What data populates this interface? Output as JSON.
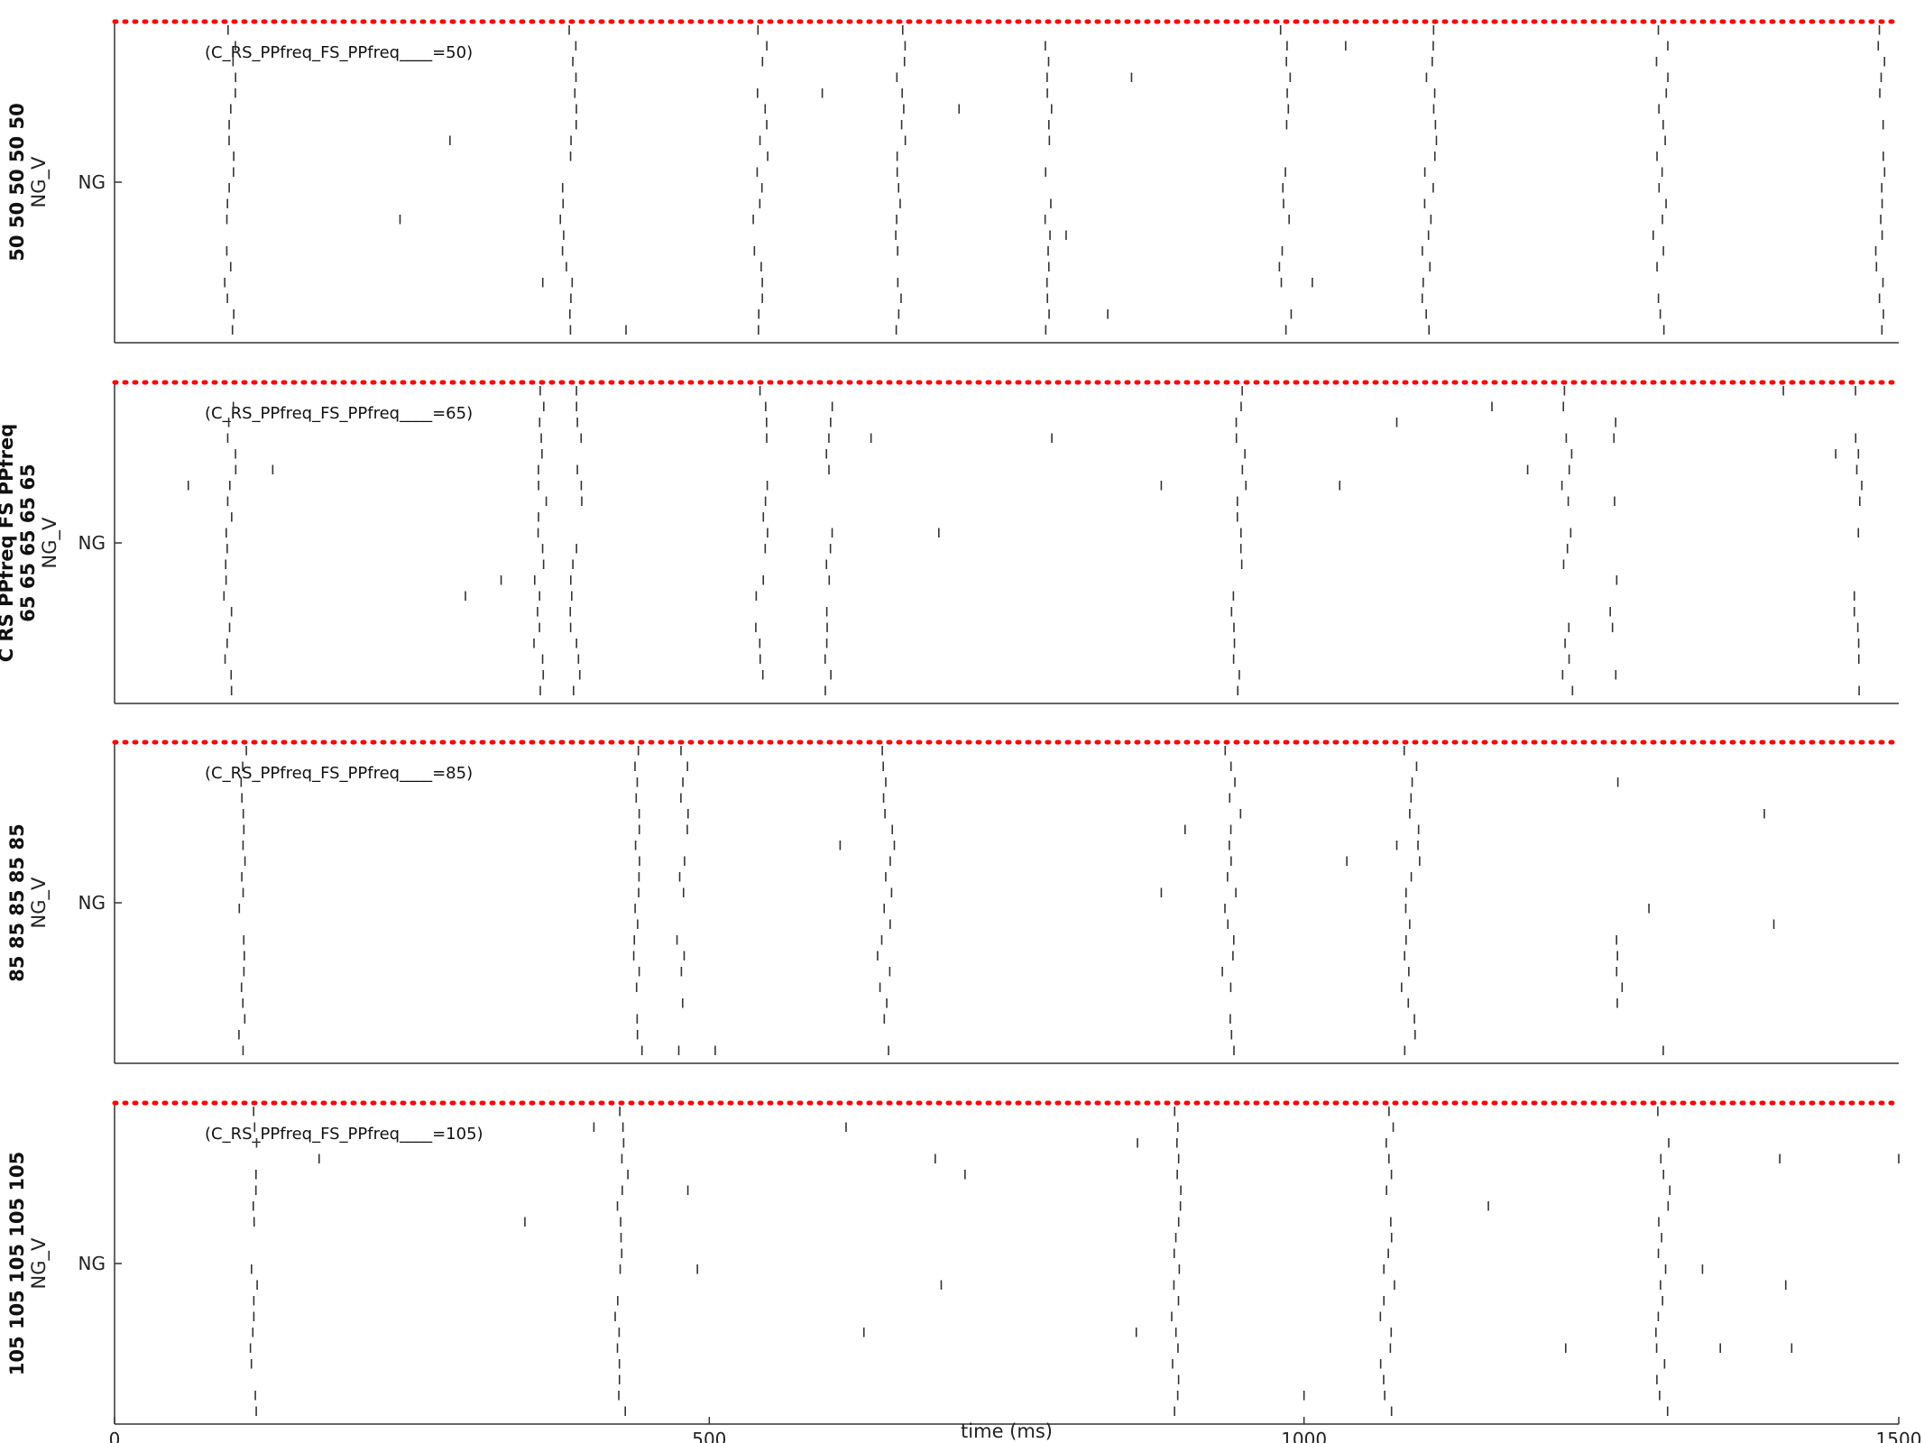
{
  "chart_data": {
    "type": "raster",
    "xlabel": "time (ms)",
    "xlim": [
      0,
      1500
    ],
    "xticks": [
      0,
      500,
      1000,
      1500
    ],
    "xtick_labels": [
      "0",
      "500",
      "1000",
      "1500"
    ],
    "reference_line_color": "#ff0000",
    "spike_color": "#333333",
    "panels": [
      {
        "annotation": "(C_RS_PPfreq_FS_PPfreq____=50)",
        "ylabel_lines": [
          "50 50 50 50 50",
          "NG_V"
        ],
        "ytick_label": "NG",
        "n_cells": 20,
        "bursts": [
          {
            "t": 97,
            "width": 8,
            "fill": 0.9
          },
          {
            "t": 383,
            "width": 12,
            "fill": 0.9
          },
          {
            "t": 543,
            "width": 10,
            "fill": 0.9
          },
          {
            "t": 660,
            "width": 8,
            "fill": 0.85
          },
          {
            "t": 785,
            "width": 6,
            "fill": 0.85
          },
          {
            "t": 985,
            "width": 10,
            "fill": 0.9
          },
          {
            "t": 1105,
            "width": 10,
            "fill": 0.95
          },
          {
            "t": 1300,
            "width": 12,
            "fill": 0.9
          },
          {
            "t": 1485,
            "width": 6,
            "fill": 0.85
          }
        ],
        "sparse": [
          [
            240,
            12
          ],
          [
            282,
            7
          ],
          [
            360,
            16
          ],
          [
            430,
            19
          ],
          [
            595,
            4
          ],
          [
            710,
            5
          ],
          [
            800,
            13
          ],
          [
            835,
            18
          ],
          [
            855,
            3
          ],
          [
            1007,
            16
          ],
          [
            1035,
            1
          ]
        ]
      },
      {
        "annotation": "(C_RS_PPfreq_FS_PPfreq____=65)",
        "ylabel_lines": [
          "C RS PPfreq FS PPfreq",
          "65 65 65 65 65",
          "NG_V"
        ],
        "ytick_label": "NG",
        "n_cells": 20,
        "bursts": [
          {
            "t": 97,
            "width": 8,
            "fill": 0.95
          },
          {
            "t": 358,
            "width": 8,
            "fill": 0.95
          },
          {
            "t": 388,
            "width": 8,
            "fill": 0.9
          },
          {
            "t": 545,
            "width": 8,
            "fill": 0.7
          },
          {
            "t": 600,
            "width": 8,
            "fill": 0.5
          },
          {
            "t": 945,
            "width": 10,
            "fill": 0.95
          },
          {
            "t": 1220,
            "width": 12,
            "fill": 0.9
          },
          {
            "t": 1260,
            "width": 10,
            "fill": 0.5
          },
          {
            "t": 1465,
            "width": 6,
            "fill": 0.55
          }
        ],
        "sparse": [
          [
            62,
            6
          ],
          [
            133,
            5
          ],
          [
            295,
            13
          ],
          [
            325,
            12
          ],
          [
            636,
            3
          ],
          [
            693,
            9
          ],
          [
            788,
            3
          ],
          [
            880,
            6
          ],
          [
            1030,
            6
          ],
          [
            1078,
            2
          ],
          [
            1158,
            1
          ],
          [
            1188,
            5
          ],
          [
            1262,
            2
          ],
          [
            1403,
            0
          ],
          [
            1447,
            4
          ]
        ]
      },
      {
        "annotation": "(C_RS_PPfreq_FS_PPfreq____=85)",
        "ylabel_lines": [
          "85 85 85 85 85",
          "NG_V"
        ],
        "ytick_label": "NG",
        "n_cells": 20,
        "bursts": [
          {
            "t": 108,
            "width": 6,
            "fill": 0.95
          },
          {
            "t": 440,
            "width": 8,
            "fill": 0.9
          },
          {
            "t": 478,
            "width": 8,
            "fill": 0.7
          },
          {
            "t": 650,
            "width": 12,
            "fill": 0.95
          },
          {
            "t": 938,
            "width": 12,
            "fill": 0.95
          },
          {
            "t": 1090,
            "width": 12,
            "fill": 0.95
          },
          {
            "t": 1265,
            "width": 12,
            "fill": 0.5
          }
        ],
        "sparse": [
          [
            505,
            19
          ],
          [
            610,
            6
          ],
          [
            880,
            9
          ],
          [
            900,
            5
          ],
          [
            1036,
            7
          ],
          [
            1078,
            6
          ],
          [
            1290,
            10
          ],
          [
            1302,
            19
          ],
          [
            1387,
            4
          ],
          [
            1395,
            11
          ]
        ]
      },
      {
        "annotation": "(C_RS_PPfreq_FS_PPfreq____=105)",
        "ylabel_lines": [
          "105 105 105 105 105",
          "NG_V"
        ],
        "ytick_label": "NG",
        "n_cells": 20,
        "bursts": [
          {
            "t": 118,
            "width": 6,
            "fill": 0.95
          },
          {
            "t": 425,
            "width": 10,
            "fill": 0.9
          },
          {
            "t": 893,
            "width": 6,
            "fill": 0.95
          },
          {
            "t": 1072,
            "width": 12,
            "fill": 0.9
          },
          {
            "t": 1300,
            "width": 12,
            "fill": 0.95
          }
        ],
        "sparse": [
          [
            172,
            3
          ],
          [
            345,
            7
          ],
          [
            403,
            1
          ],
          [
            482,
            5
          ],
          [
            490,
            10
          ],
          [
            615,
            1
          ],
          [
            630,
            14
          ],
          [
            690,
            3
          ],
          [
            695,
            11
          ],
          [
            715,
            4
          ],
          [
            859,
            14
          ],
          [
            860,
            2
          ],
          [
            1000,
            18
          ],
          [
            1155,
            6
          ],
          [
            1220,
            15
          ],
          [
            1335,
            10
          ],
          [
            1350,
            15
          ],
          [
            1400,
            3
          ],
          [
            1405,
            11
          ],
          [
            1410,
            15
          ],
          [
            1500,
            3
          ]
        ]
      }
    ]
  }
}
